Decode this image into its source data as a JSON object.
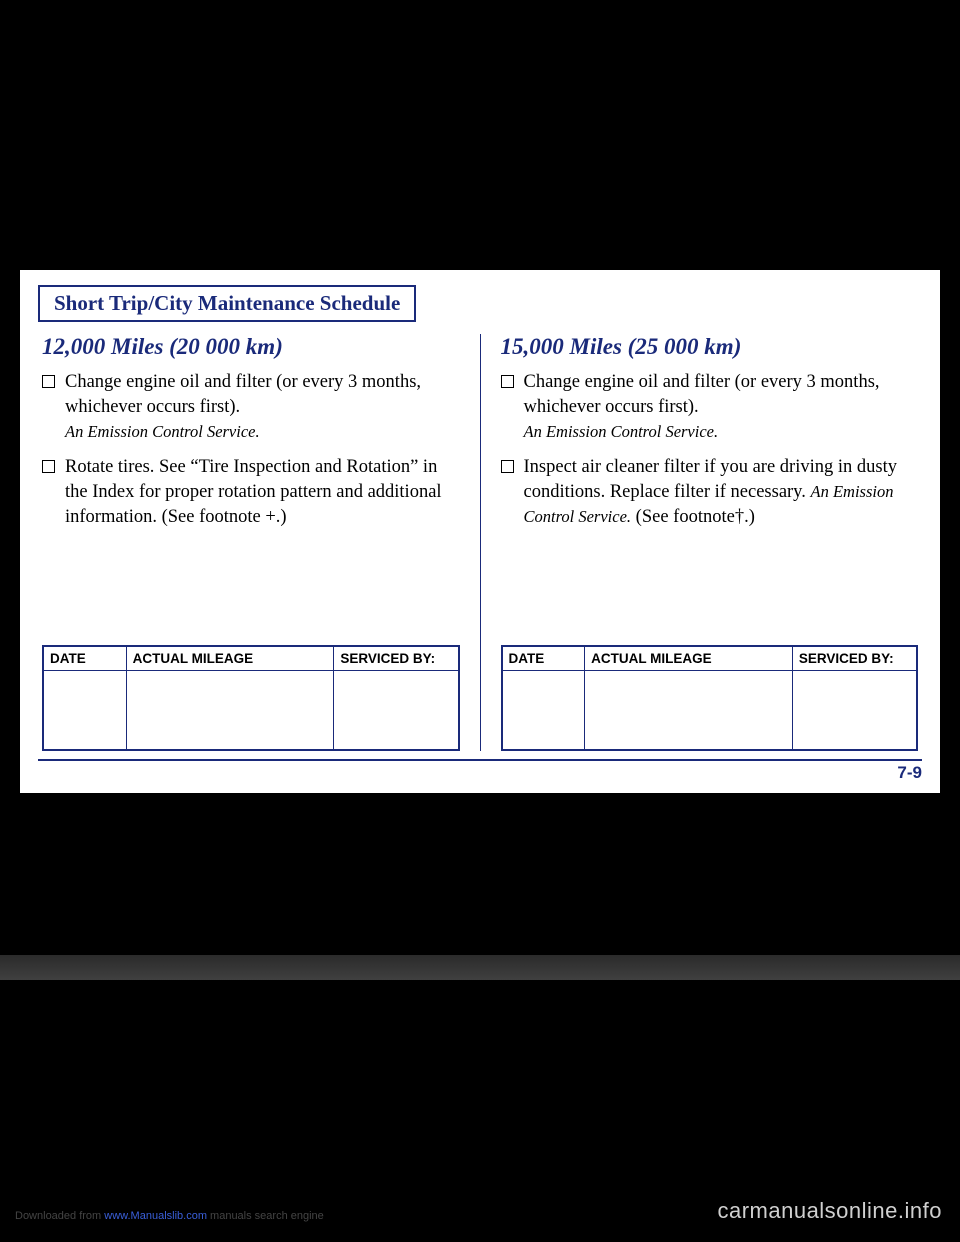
{
  "schedule_title": "Short Trip/City Maintenance Schedule",
  "left_column": {
    "heading": "12,000 Miles (20 000 km)",
    "items": [
      {
        "main": "Change engine oil and filter (or every 3 months, whichever occurs first).",
        "note": "An Emission Control Service."
      },
      {
        "main": "Rotate tires. See “Tire Inspection and Rotation” in the Index for proper rotation pattern and additional information. (See footnote +.)",
        "note": ""
      }
    ]
  },
  "right_column": {
    "heading": "15,000 Miles (25 000 km)",
    "items": [
      {
        "main": "Change engine oil and filter (or every 3 months, whichever occurs first).",
        "note": "An Emission Control Service."
      },
      {
        "main_before": "Inspect air cleaner filter if you are driving in dusty conditions. Replace filter if necessary. ",
        "note_inline": "An Emission Control Service.",
        "main_after": " (See footnote†.)"
      }
    ]
  },
  "table_headers": {
    "date": "DATE",
    "mileage": "ACTUAL MILEAGE",
    "serviced": "SERVICED BY:"
  },
  "page_number": "7-9",
  "watermark": "carmanualsonline.info",
  "download_text": "Downloaded from ",
  "download_link": "www.Manualslib.com",
  "download_suffix": " manuals search engine"
}
